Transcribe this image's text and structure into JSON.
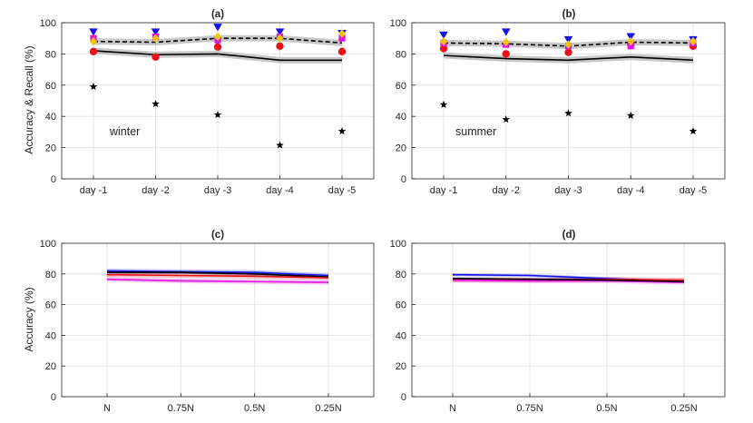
{
  "figure": {
    "ylabel_top": "Accuracy & Recall (%)",
    "ylabel_bottom": "Accuracy (%)"
  },
  "colors": {
    "black": "#000000",
    "red": "#e8121a",
    "blue": "#1212e8",
    "magenta": "#e012e0",
    "yellow": "#f2c40f",
    "band": "#bdbdbd"
  },
  "chart_data": [
    {
      "panel": "a",
      "type": "line",
      "title": "(a)",
      "annotation": "winter",
      "categories": [
        "day -1",
        "day -2",
        "day -3",
        "day -4",
        "day -5"
      ],
      "ylim": [
        0,
        100
      ],
      "yticks": [
        0,
        20,
        40,
        60,
        80,
        100
      ],
      "grid": true,
      "series": [
        {
          "name": "accuracy",
          "style": "solid-line-band",
          "color": "#000000",
          "values": [
            82,
            79.5,
            80,
            76,
            76
          ],
          "band": 2
        },
        {
          "name": "recall",
          "style": "dashed-line-band",
          "color": "#000000",
          "values": [
            88,
            87.5,
            90,
            90,
            87
          ],
          "band": 2
        }
      ],
      "markers": [
        {
          "name": "star",
          "shape": "star",
          "color": "#000000",
          "values": [
            59,
            48,
            41,
            21.5,
            30.5
          ]
        },
        {
          "name": "red circle",
          "shape": "circle",
          "color": "#e8121a",
          "values": [
            81.5,
            78,
            84.5,
            85,
            81.5
          ]
        },
        {
          "name": "blue triangle",
          "shape": "tri-down",
          "color": "#1212e8",
          "values": [
            94,
            94,
            97,
            94,
            93
          ]
        },
        {
          "name": "magenta square",
          "shape": "square",
          "color": "#e012e0",
          "values": [
            90,
            91,
            89,
            91,
            90
          ]
        },
        {
          "name": "yellow diamond",
          "shape": "diamond",
          "color": "#f2c40f",
          "values": [
            88,
            90,
            91,
            90,
            93
          ]
        }
      ]
    },
    {
      "panel": "b",
      "type": "line",
      "title": "(b)",
      "annotation": "summer",
      "categories": [
        "day -1",
        "day -2",
        "day -3",
        "day -4",
        "day -5"
      ],
      "ylim": [
        0,
        100
      ],
      "yticks": [
        0,
        20,
        40,
        60,
        80,
        100
      ],
      "grid": true,
      "series": [
        {
          "name": "accuracy",
          "style": "solid-line-band",
          "color": "#000000",
          "values": [
            79,
            77,
            76,
            78,
            76
          ],
          "band": 2
        },
        {
          "name": "recall",
          "style": "dashed-line-band",
          "color": "#000000",
          "values": [
            87,
            86.5,
            85,
            87.5,
            87
          ],
          "band": 2
        }
      ],
      "markers": [
        {
          "name": "star",
          "shape": "star",
          "color": "#000000",
          "values": [
            47.5,
            38,
            42,
            40.5,
            30.5
          ]
        },
        {
          "name": "red circle",
          "shape": "circle",
          "color": "#e8121a",
          "values": [
            83.5,
            80,
            81,
            86,
            85
          ]
        },
        {
          "name": "blue triangle",
          "shape": "tri-down",
          "color": "#1212e8",
          "values": [
            92,
            94,
            89,
            91,
            89
          ]
        },
        {
          "name": "magenta square",
          "shape": "square",
          "color": "#e012e0",
          "values": [
            87,
            86,
            85,
            85,
            87
          ]
        },
        {
          "name": "yellow diamond",
          "shape": "diamond",
          "color": "#f2c40f",
          "values": [
            88,
            87.5,
            86,
            88,
            88
          ]
        }
      ]
    },
    {
      "panel": "c",
      "type": "line",
      "title": "(c)",
      "categories": [
        "N",
        "0.75N",
        "0.5N",
        "0.25N"
      ],
      "ylim": [
        0,
        100
      ],
      "yticks": [
        0,
        20,
        40,
        60,
        80,
        100
      ],
      "grid": true,
      "series": [
        {
          "name": "blue",
          "style": "line-band",
          "color": "#1212e8",
          "values": [
            82,
            81.5,
            81,
            79
          ],
          "band": 1.5
        },
        {
          "name": "black",
          "style": "line-band",
          "color": "#000000",
          "values": [
            81,
            81,
            80,
            78
          ],
          "band": 1
        },
        {
          "name": "red",
          "style": "line-band",
          "color": "#e8121a",
          "values": [
            79.5,
            79,
            78.5,
            77.5
          ],
          "band": 1.5
        },
        {
          "name": "magenta",
          "style": "line-band",
          "color": "#e012e0",
          "values": [
            76.5,
            75.5,
            75,
            74.5
          ],
          "band": 1.5
        }
      ]
    },
    {
      "panel": "d",
      "type": "line",
      "title": "(d)",
      "categories": [
        "N",
        "0.75N",
        "0.5N",
        "0.25N"
      ],
      "ylim": [
        0,
        100
      ],
      "yticks": [
        0,
        20,
        40,
        60,
        80,
        100
      ],
      "grid": true,
      "series": [
        {
          "name": "blue",
          "style": "line-band",
          "color": "#1212e8",
          "values": [
            79.5,
            79,
            77,
            75
          ],
          "band": 1
        },
        {
          "name": "red",
          "style": "line-band",
          "color": "#e8121a",
          "values": [
            76,
            76,
            76.5,
            76
          ],
          "band": 1.5
        },
        {
          "name": "magenta",
          "style": "line-band",
          "color": "#e012e0",
          "values": [
            76,
            75.5,
            75.5,
            74.5
          ],
          "band": 1.5
        },
        {
          "name": "black",
          "style": "line-band",
          "color": "#000000",
          "values": [
            77,
            76.5,
            76,
            75
          ],
          "band": 1
        }
      ]
    }
  ]
}
